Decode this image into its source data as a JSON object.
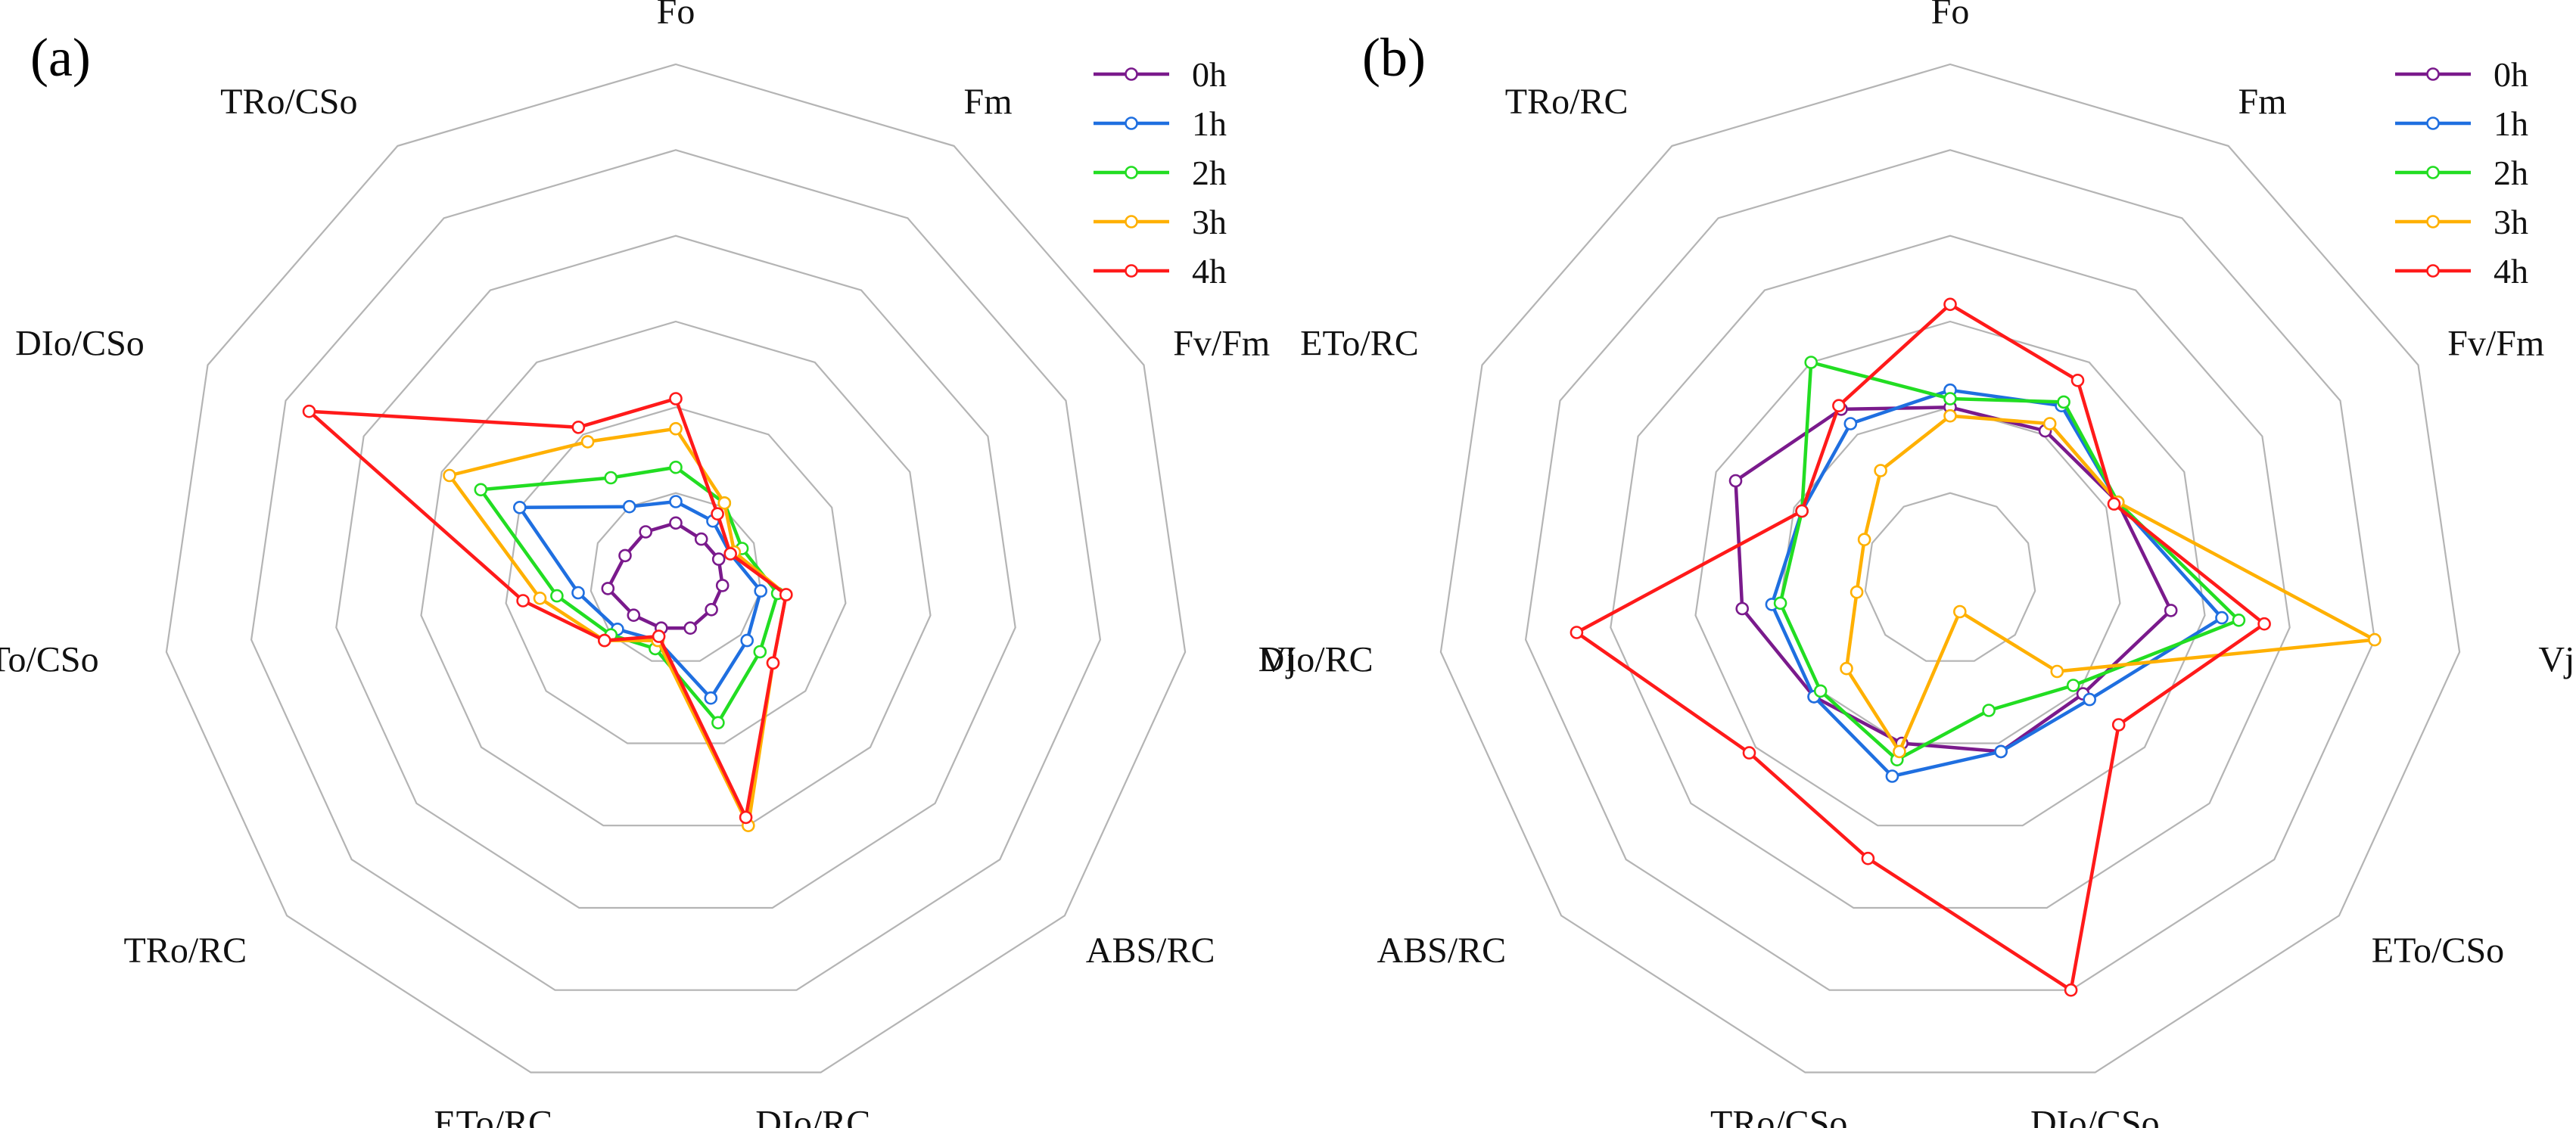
{
  "chart_data": [
    {
      "type": "radar",
      "panel": "(a)",
      "axes": [
        "Fo",
        "Fm",
        "Fv/Fm",
        "Vj",
        "ABS/RC",
        "DIo/RC",
        "ETo/RC",
        "TRo/RC",
        "ETo/CSo",
        "DIo/CSo",
        "TRo/CSo"
      ],
      "rmax": 6,
      "rings": [
        1,
        2,
        3,
        4,
        5,
        6
      ],
      "series": [
        {
          "name": "0h",
          "color": "#7a1a8c",
          "values": [
            0.65,
            0.55,
            0.55,
            0.55,
            0.55,
            0.6,
            0.6,
            0.65,
            0.8,
            0.65,
            0.65
          ]
        },
        {
          "name": "1h",
          "color": "#1f6fe0",
          "values": [
            0.9,
            0.8,
            0.7,
            1.0,
            1.1,
            1.45,
            0.75,
            0.9,
            1.15,
            2.0,
            1.0
          ]
        },
        {
          "name": "2h",
          "color": "#22dd22",
          "values": [
            1.3,
            1.05,
            0.85,
            1.2,
            1.3,
            1.75,
            0.85,
            1.0,
            1.4,
            2.5,
            1.4
          ]
        },
        {
          "name": "3h",
          "color": "#ffb000",
          "values": [
            1.75,
            1.05,
            0.75,
            1.3,
            1.5,
            3.0,
            0.75,
            1.1,
            1.6,
            2.9,
            1.9
          ]
        },
        {
          "name": "4h",
          "color": "#ff1a1a",
          "values": [
            2.1,
            0.9,
            0.7,
            1.3,
            1.5,
            2.9,
            0.7,
            1.1,
            1.8,
            4.7,
            2.1
          ]
        }
      ]
    },
    {
      "type": "radar",
      "panel": "(b)",
      "axes": [
        "Fo",
        "Fm",
        "Fv/Fm",
        "Vj",
        "ETo/CSo",
        "DIo/CSo",
        "TRo/CSo",
        "ABS/RC",
        "DIo/RC",
        "ETo/RC",
        "TRo/RC"
      ],
      "rmax": 6,
      "rings": [
        1,
        2,
        3,
        4,
        5,
        6
      ],
      "series": [
        {
          "name": "0h",
          "color": "#7a1a8c",
          "values": [
            2.0,
            2.05,
            2.15,
            2.6,
            2.05,
            2.1,
            2.0,
            2.1,
            2.45,
            2.75,
            2.35
          ]
        },
        {
          "name": "1h",
          "color": "#1f6fe0",
          "values": [
            2.2,
            2.4,
            2.15,
            3.2,
            2.15,
            2.1,
            2.4,
            2.1,
            2.1,
            1.9,
            2.15
          ]
        },
        {
          "name": "2h",
          "color": "#22dd22",
          "values": [
            2.1,
            2.45,
            2.15,
            3.4,
            1.9,
            1.6,
            2.2,
            2.0,
            2.0,
            1.9,
            3.0
          ]
        },
        {
          "name": "3h",
          "color": "#ffb000",
          "values": [
            1.9,
            2.15,
            2.15,
            5.0,
            1.65,
            0.4,
            2.1,
            1.6,
            1.1,
            1.1,
            1.5
          ]
        },
        {
          "name": "4h",
          "color": "#ff1a1a",
          "values": [
            3.2,
            2.75,
            2.1,
            3.7,
            2.6,
            5.0,
            3.4,
            3.1,
            4.4,
            1.9,
            2.4
          ]
        }
      ]
    }
  ]
}
